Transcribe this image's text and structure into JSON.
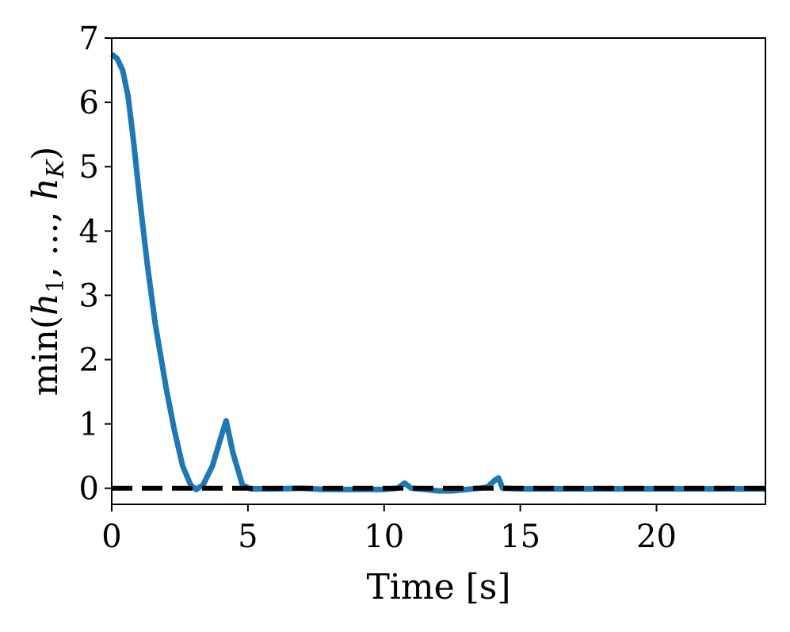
{
  "chart_data": {
    "type": "line",
    "xlabel": "Time [s]",
    "ylabel_parts": {
      "fn": "min(",
      "h1": "h",
      "sub1": "1",
      "mid": ", ..., ",
      "hK": "h",
      "subK": "K",
      "close": ")"
    },
    "xlim": [
      0,
      24
    ],
    "ylim": [
      -0.25,
      7
    ],
    "xticks": [
      0,
      5,
      10,
      15,
      20
    ],
    "yticks": [
      0,
      1,
      2,
      3,
      4,
      5,
      6,
      7
    ],
    "grid": false,
    "series": [
      {
        "style": "solid",
        "color": "#1f77b4",
        "x": [
          0,
          0.2,
          0.4,
          0.6,
          0.8,
          1.0,
          1.3,
          1.6,
          2.0,
          2.3,
          2.6,
          2.9,
          3.1,
          3.35,
          3.7,
          4.0,
          4.2,
          4.45,
          4.8,
          5.1,
          6.0,
          7.0,
          7.8,
          8.5,
          9.2,
          10.0,
          10.5,
          10.75,
          11.0,
          11.5,
          12.0,
          12.5,
          13.0,
          13.5,
          13.8,
          14.05,
          14.2,
          14.35,
          15.0,
          16.0,
          18.0,
          20.0,
          22.0,
          24.0
        ],
        "y": [
          6.75,
          6.68,
          6.5,
          6.1,
          5.4,
          4.6,
          3.5,
          2.55,
          1.55,
          0.9,
          0.35,
          0.05,
          -0.02,
          0.05,
          0.35,
          0.78,
          1.05,
          0.55,
          0.05,
          -0.01,
          -0.01,
          0.0,
          -0.02,
          -0.02,
          -0.02,
          -0.02,
          0.0,
          0.08,
          0.0,
          -0.02,
          -0.04,
          -0.04,
          -0.02,
          0.0,
          0.02,
          0.12,
          0.16,
          0.0,
          -0.01,
          -0.01,
          -0.01,
          -0.01,
          -0.01,
          -0.01
        ]
      },
      {
        "style": "dashed",
        "color": "#000000",
        "x": [
          0,
          24
        ],
        "y": [
          0,
          0
        ]
      }
    ]
  }
}
